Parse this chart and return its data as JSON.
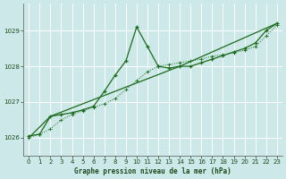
{
  "background_color": "#cce8e8",
  "plot_bg_color": "#cce8e8",
  "grid_color": "#ffffff",
  "line_color": "#1a6b1a",
  "xlabel": "Graphe pression niveau de la mer (hPa)",
  "ylim": [
    1025.5,
    1029.75
  ],
  "xlim": [
    -0.5,
    23.5
  ],
  "yticks": [
    1026,
    1027,
    1028,
    1029
  ],
  "xticks": [
    0,
    1,
    2,
    3,
    4,
    5,
    6,
    7,
    8,
    9,
    10,
    11,
    12,
    13,
    14,
    15,
    16,
    17,
    18,
    19,
    20,
    21,
    22,
    23
  ],
  "line1_x": [
    0,
    1,
    2,
    3,
    4,
    5,
    6,
    7,
    8,
    9,
    10,
    11,
    12,
    13,
    14,
    15,
    16,
    17,
    18,
    19,
    20,
    21,
    22,
    23
  ],
  "line1_y": [
    1026.0,
    1026.1,
    1026.25,
    1026.5,
    1026.65,
    1026.75,
    1026.85,
    1026.95,
    1027.1,
    1027.35,
    1027.6,
    1027.85,
    1028.0,
    1028.05,
    1028.1,
    1028.15,
    1028.2,
    1028.28,
    1028.32,
    1028.38,
    1028.45,
    1028.55,
    1028.85,
    1029.15
  ],
  "line2_x": [
    0,
    1,
    2,
    3,
    4,
    5,
    6,
    7,
    8,
    9,
    10,
    11,
    12,
    13,
    14,
    15,
    16,
    17,
    18,
    19,
    20,
    21,
    22,
    23
  ],
  "line2_y": [
    1026.05,
    1026.1,
    1026.6,
    1026.65,
    1026.7,
    1026.78,
    1026.88,
    1027.3,
    1027.75,
    1028.15,
    1029.1,
    1028.55,
    1028.0,
    1027.95,
    1028.0,
    1028.0,
    1028.1,
    1028.2,
    1028.3,
    1028.4,
    1028.5,
    1028.65,
    1029.0,
    1029.2
  ],
  "line3_x": [
    0,
    2,
    14,
    23
  ],
  "line3_y": [
    1026.0,
    1026.6,
    1028.0,
    1029.2
  ]
}
